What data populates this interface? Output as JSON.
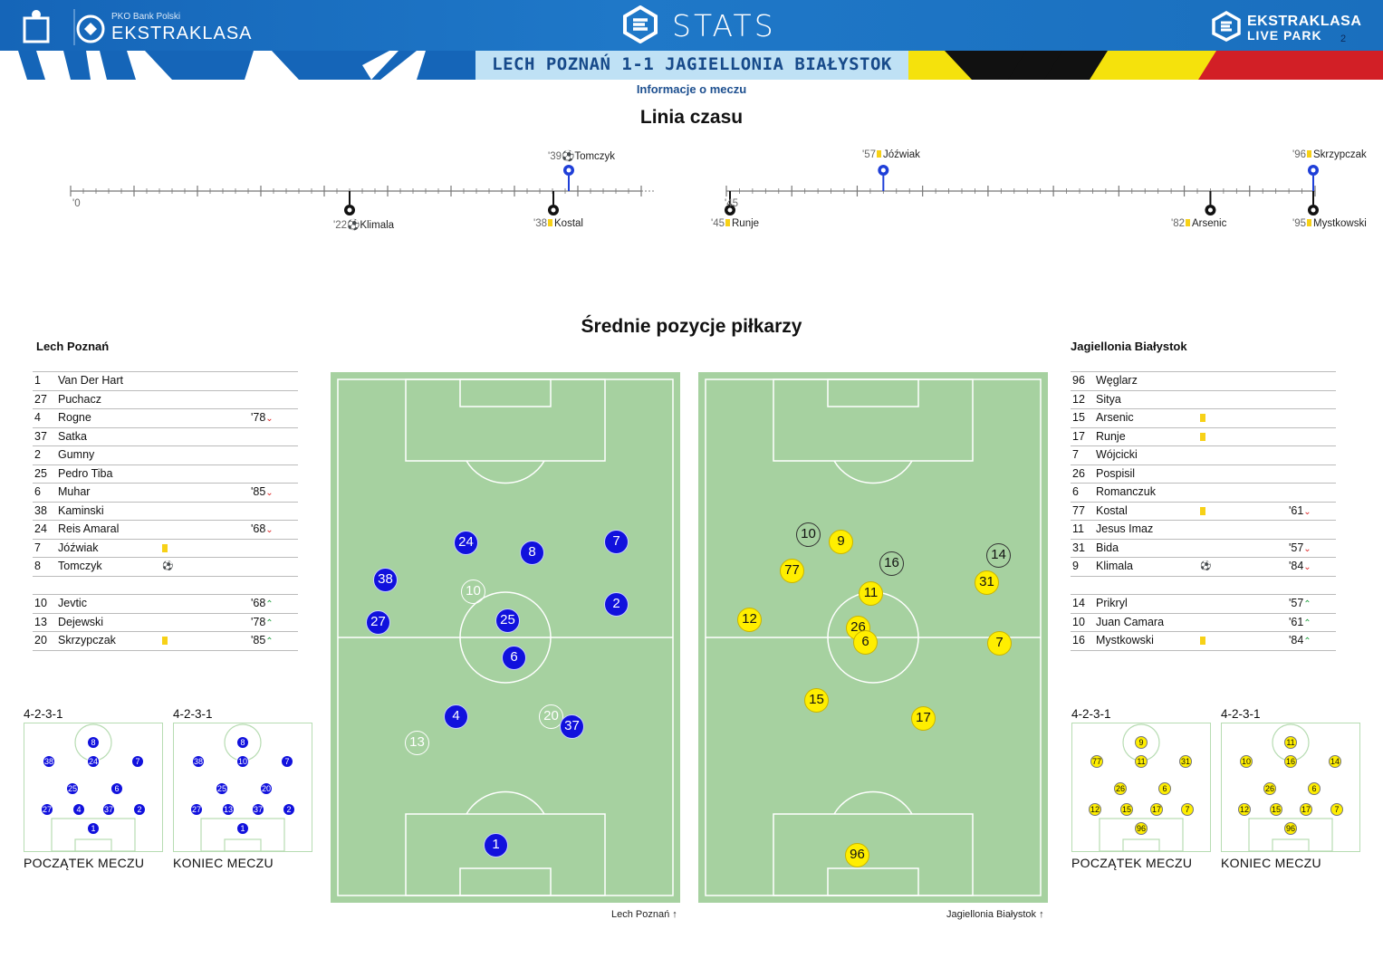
{
  "header": {
    "app_title": "STATS",
    "sponsor_small": "PKO Bank Polski",
    "league_left": "EKSTRAKLASA",
    "league_right_line1": "EKSTRAKLASA",
    "league_right_line2": "LIVE PARK",
    "page_number": "2",
    "match_title": "LECH POZNAŃ 1-1 JAGIELLONIA BIAŁYSTOK",
    "subtitle": "Informacje o meczu"
  },
  "colors": {
    "home": "#1111dd",
    "away": "#ffee00",
    "header_blue": "#1a6fbe",
    "pitch": "#a6d1a0",
    "yellow_card": "#f7d117"
  },
  "timeline": {
    "title": "Linia czasu",
    "first_half_start": "'0",
    "second_half_start": "'45",
    "events": [
      {
        "min": "'39",
        "icon": "goal-icon",
        "player": "Tomczyk",
        "team": "home"
      },
      {
        "min": "'22",
        "icon": "goal-icon",
        "player": "Klimala",
        "team": "away"
      },
      {
        "min": "'38",
        "icon": "yellow-card",
        "player": "Kostal",
        "team": "away"
      },
      {
        "min": "'57",
        "icon": "yellow-card",
        "player": "Jóźwiak",
        "team": "home"
      },
      {
        "min": "'96",
        "icon": "yellow-card",
        "player": "Skrzypczak",
        "team": "home"
      },
      {
        "min": "'45",
        "icon": "yellow-card",
        "player": "Runje",
        "team": "away"
      },
      {
        "min": "'82",
        "icon": "yellow-card",
        "player": "Arsenic",
        "team": "away"
      },
      {
        "min": "'95",
        "icon": "yellow-card",
        "player": "Mystkowski",
        "team": "away"
      }
    ]
  },
  "positions": {
    "title": "Średnie pozycje piłkarzy",
    "home_caption": "Lech Poznań",
    "away_caption": "Jagiellonia Białystok",
    "home_dots": [
      "24",
      "8",
      "7",
      "38",
      "10",
      "2",
      "27",
      "25",
      "6",
      "4",
      "20",
      "37",
      "13",
      "1"
    ],
    "away_dots": [
      "10",
      "9",
      "16",
      "14",
      "77",
      "31",
      "11",
      "12",
      "26",
      "6",
      "7",
      "15",
      "17",
      "96"
    ]
  },
  "home": {
    "name": "Lech Poznań",
    "players": [
      {
        "num": "1",
        "name": "Van Der Hart",
        "sub": ""
      },
      {
        "num": "27",
        "name": "Puchacz",
        "sub": ""
      },
      {
        "num": "4",
        "name": "Rogne",
        "sub": "'78"
      },
      {
        "num": "37",
        "name": "Satka",
        "sub": ""
      },
      {
        "num": "2",
        "name": "Gumny",
        "sub": ""
      },
      {
        "num": "25",
        "name": "Pedro Tiba",
        "sub": ""
      },
      {
        "num": "6",
        "name": "Muhar",
        "sub": "'85"
      },
      {
        "num": "38",
        "name": "Kaminski",
        "sub": ""
      },
      {
        "num": "24",
        "name": "Reis Amaral",
        "sub": "'68"
      },
      {
        "num": "7",
        "name": "Jóźwiak",
        "sub": ""
      },
      {
        "num": "8",
        "name": "Tomczyk",
        "sub": ""
      }
    ],
    "subs": [
      {
        "num": "10",
        "name": "Jevtic",
        "sub": "'68"
      },
      {
        "num": "13",
        "name": "Dejewski",
        "sub": "'78"
      },
      {
        "num": "20",
        "name": "Skrzypczak",
        "sub": "'85"
      }
    ],
    "formation_start": "4-2-3-1",
    "formation_end": "4-2-3-1",
    "start_dots": [
      "8",
      "38",
      "24",
      "7",
      "25",
      "6",
      "27",
      "4",
      "37",
      "2",
      "1"
    ],
    "end_dots": [
      "8",
      "38",
      "10",
      "7",
      "25",
      "20",
      "27",
      "13",
      "37",
      "2",
      "1"
    ]
  },
  "away": {
    "name": "Jagiellonia Białystok",
    "players": [
      {
        "num": "96",
        "name": "Węglarz",
        "sub": ""
      },
      {
        "num": "12",
        "name": "Sitya",
        "sub": ""
      },
      {
        "num": "15",
        "name": "Arsenic",
        "sub": ""
      },
      {
        "num": "17",
        "name": "Runje",
        "sub": ""
      },
      {
        "num": "7",
        "name": "Wójcicki",
        "sub": ""
      },
      {
        "num": "26",
        "name": "Pospisil",
        "sub": ""
      },
      {
        "num": "6",
        "name": "Romanczuk",
        "sub": ""
      },
      {
        "num": "77",
        "name": "Kostal",
        "sub": "'61"
      },
      {
        "num": "11",
        "name": "Jesus Imaz",
        "sub": ""
      },
      {
        "num": "31",
        "name": "Bida",
        "sub": "'57"
      },
      {
        "num": "9",
        "name": "Klimala",
        "sub": "'84"
      }
    ],
    "subs": [
      {
        "num": "14",
        "name": "Prikryl",
        "sub": "'57"
      },
      {
        "num": "10",
        "name": "Juan Camara",
        "sub": "'61"
      },
      {
        "num": "16",
        "name": "Mystkowski",
        "sub": "'84"
      }
    ],
    "formation_start": "4-2-3-1",
    "formation_end": "4-2-3-1",
    "start_dots": [
      "9",
      "77",
      "11",
      "31",
      "26",
      "6",
      "12",
      "15",
      "17",
      "7",
      "96"
    ],
    "end_dots": [
      "11",
      "10",
      "16",
      "14",
      "26",
      "6",
      "12",
      "15",
      "17",
      "7",
      "96"
    ]
  },
  "captions": {
    "start": "POCZĄTEK MECZU",
    "end": "KONIEC MECZU"
  }
}
